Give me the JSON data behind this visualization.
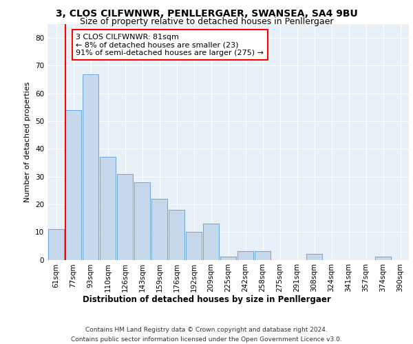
{
  "title1": "3, CLOS CILFWNWR, PENLLERGAER, SWANSEA, SA4 9BU",
  "title2": "Size of property relative to detached houses in Penllergaer",
  "xlabel": "Distribution of detached houses by size in Penllergaer",
  "ylabel": "Number of detached properties",
  "categories": [
    "61sqm",
    "77sqm",
    "93sqm",
    "110sqm",
    "126sqm",
    "143sqm",
    "159sqm",
    "176sqm",
    "192sqm",
    "209sqm",
    "225sqm",
    "242sqm",
    "258sqm",
    "275sqm",
    "291sqm",
    "308sqm",
    "324sqm",
    "341sqm",
    "357sqm",
    "374sqm",
    "390sqm"
  ],
  "values": [
    11,
    54,
    67,
    37,
    31,
    28,
    22,
    18,
    10,
    13,
    1,
    3,
    3,
    0,
    0,
    2,
    0,
    0,
    0,
    1,
    0
  ],
  "bar_color": "#c6d9ec",
  "bar_edge_color": "#5b9bd5",
  "highlight_bar_index": 1,
  "vline_color": "#ff0000",
  "annotation_line1": "3 CLOS CILFWNWR: 81sqm",
  "annotation_line2": "← 8% of detached houses are smaller (23)",
  "annotation_line3": "91% of semi-detached houses are larger (275) →",
  "ylim": [
    0,
    85
  ],
  "yticks": [
    0,
    10,
    20,
    30,
    40,
    50,
    60,
    70,
    80
  ],
  "plot_bg_color": "#e8f0f8",
  "footer_line1": "Contains HM Land Registry data © Crown copyright and database right 2024.",
  "footer_line2": "Contains public sector information licensed under the Open Government Licence v3.0.",
  "title1_fontsize": 10,
  "title2_fontsize": 9,
  "xlabel_fontsize": 8.5,
  "ylabel_fontsize": 8,
  "tick_fontsize": 7.5,
  "footer_fontsize": 6.5,
  "annotation_fontsize": 8
}
